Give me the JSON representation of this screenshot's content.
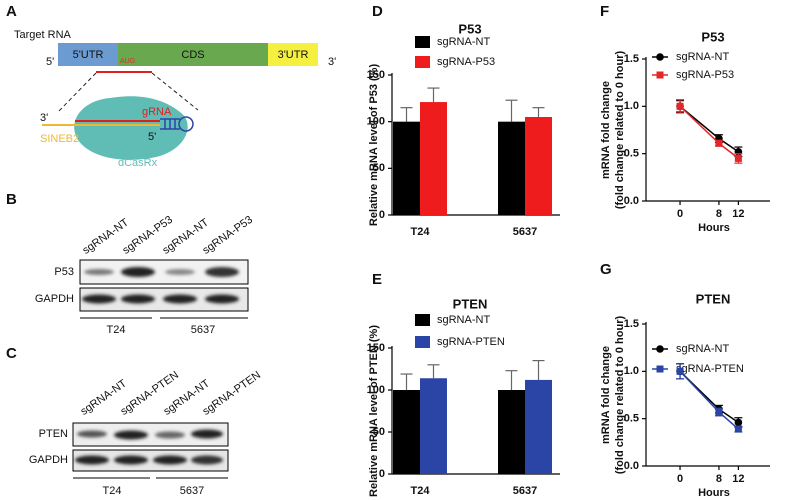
{
  "panels": {
    "A": {
      "letter": "A",
      "title": "Target RNA",
      "segments": [
        "5'UTR",
        "CDS",
        "3'UTR"
      ],
      "end5": "5'",
      "end3": "3'",
      "start_codon": "AUG",
      "guide": "gRNA",
      "tail": "SINEB2",
      "guide_end3": "3'",
      "guide_end5": "5'",
      "protein": "dCasRx"
    },
    "B": {
      "letter": "B",
      "lanes": [
        "sgRNA-NT",
        "sgRNA-P53",
        "sgRNA-NT",
        "sgRNA-P53"
      ],
      "rows": [
        "P53",
        "GAPDH"
      ],
      "groups": [
        "T24",
        "5637"
      ]
    },
    "C": {
      "letter": "C",
      "lanes": [
        "sgRNA-NT",
        "sgRNA-PTEN",
        "sgRNA-NT",
        "sgRNA-PTEN"
      ],
      "rows": [
        "PTEN",
        "GAPDH"
      ],
      "groups": [
        "T24",
        "5637"
      ]
    }
  },
  "chart_data": [
    {
      "type": "bar",
      "panel": "D",
      "title": "P53",
      "ylabel": [
        "Relative mRNA level of P53 (%)"
      ],
      "categories": [
        "T24",
        "5637"
      ],
      "series": [
        {
          "name": "sgRNA-NT",
          "color": "#000000",
          "values": [
            100,
            100
          ],
          "errors": [
            15,
            23
          ]
        },
        {
          "name": "sgRNA-P53",
          "color": "#ee1c1c",
          "values": [
            121,
            105
          ],
          "errors": [
            15,
            10
          ]
        }
      ],
      "ylim": [
        0,
        150
      ],
      "yticks": [
        0,
        50,
        100,
        150
      ]
    },
    {
      "type": "bar",
      "panel": "E",
      "title": "PTEN",
      "ylabel": [
        "Relative mRNA level of PTEN (%)"
      ],
      "categories": [
        "T24",
        "5637"
      ],
      "series": [
        {
          "name": "sgRNA-NT",
          "color": "#000000",
          "values": [
            100,
            100
          ],
          "errors": [
            19,
            23
          ]
        },
        {
          "name": "sgRNA-PTEN",
          "color": "#2b45a6",
          "values": [
            114,
            112
          ],
          "errors": [
            16,
            23
          ]
        }
      ],
      "ylim": [
        0,
        150
      ],
      "yticks": [
        0,
        50,
        100,
        150
      ]
    },
    {
      "type": "line",
      "panel": "F",
      "title": "P53",
      "xlabel": "Hours",
      "ylabel": [
        "mRNA  fold change",
        "(fold change related to 0 hour)"
      ],
      "x": [
        0,
        8,
        12
      ],
      "series": [
        {
          "name": "sgRNA-NT",
          "color": "#000000",
          "marker": "circle",
          "values": [
            1.0,
            0.66,
            0.52
          ],
          "errors": [
            0.06,
            0.04,
            0.05
          ]
        },
        {
          "name": "sgRNA-P53",
          "color": "#e3262a",
          "marker": "square",
          "values": [
            1.0,
            0.61,
            0.45
          ],
          "errors": [
            0.07,
            0.03,
            0.05
          ]
        }
      ],
      "xlim": [
        -7,
        18.5
      ],
      "xticks": [
        0,
        8,
        12
      ],
      "ylim": [
        0,
        1.5
      ],
      "yticks": [
        {
          "value": 0,
          "label": "0.0"
        },
        {
          "value": 0.5,
          "label": "0.5"
        },
        {
          "value": 1,
          "label": "1.0"
        },
        {
          "value": 1.5,
          "label": "1.5"
        }
      ]
    },
    {
      "type": "line",
      "panel": "G",
      "title": "PTEN",
      "xlabel": "Hours",
      "ylabel": [
        "mRNA  fold change",
        "(fold change related to 0 hour)"
      ],
      "x": [
        0,
        8,
        12
      ],
      "series": [
        {
          "name": "sgRNA-NT",
          "color": "#000000",
          "marker": "circle",
          "values": [
            1.0,
            0.6,
            0.46
          ],
          "errors": [
            0.08,
            0.04,
            0.05
          ]
        },
        {
          "name": "sgRNA-PTEN",
          "color": "#2b45a6",
          "marker": "square",
          "values": [
            1.0,
            0.57,
            0.39
          ],
          "errors": [
            0.08,
            0.04,
            0.03
          ]
        }
      ],
      "xlim": [
        -7,
        18.5
      ],
      "xticks": [
        0,
        8,
        12
      ],
      "ylim": [
        0,
        1.5
      ],
      "yticks": [
        {
          "value": 0,
          "label": "0.0"
        },
        {
          "value": 0.5,
          "label": "0.5"
        },
        {
          "value": 1,
          "label": "1.0"
        },
        {
          "value": 1.5,
          "label": "1.5"
        }
      ]
    }
  ]
}
